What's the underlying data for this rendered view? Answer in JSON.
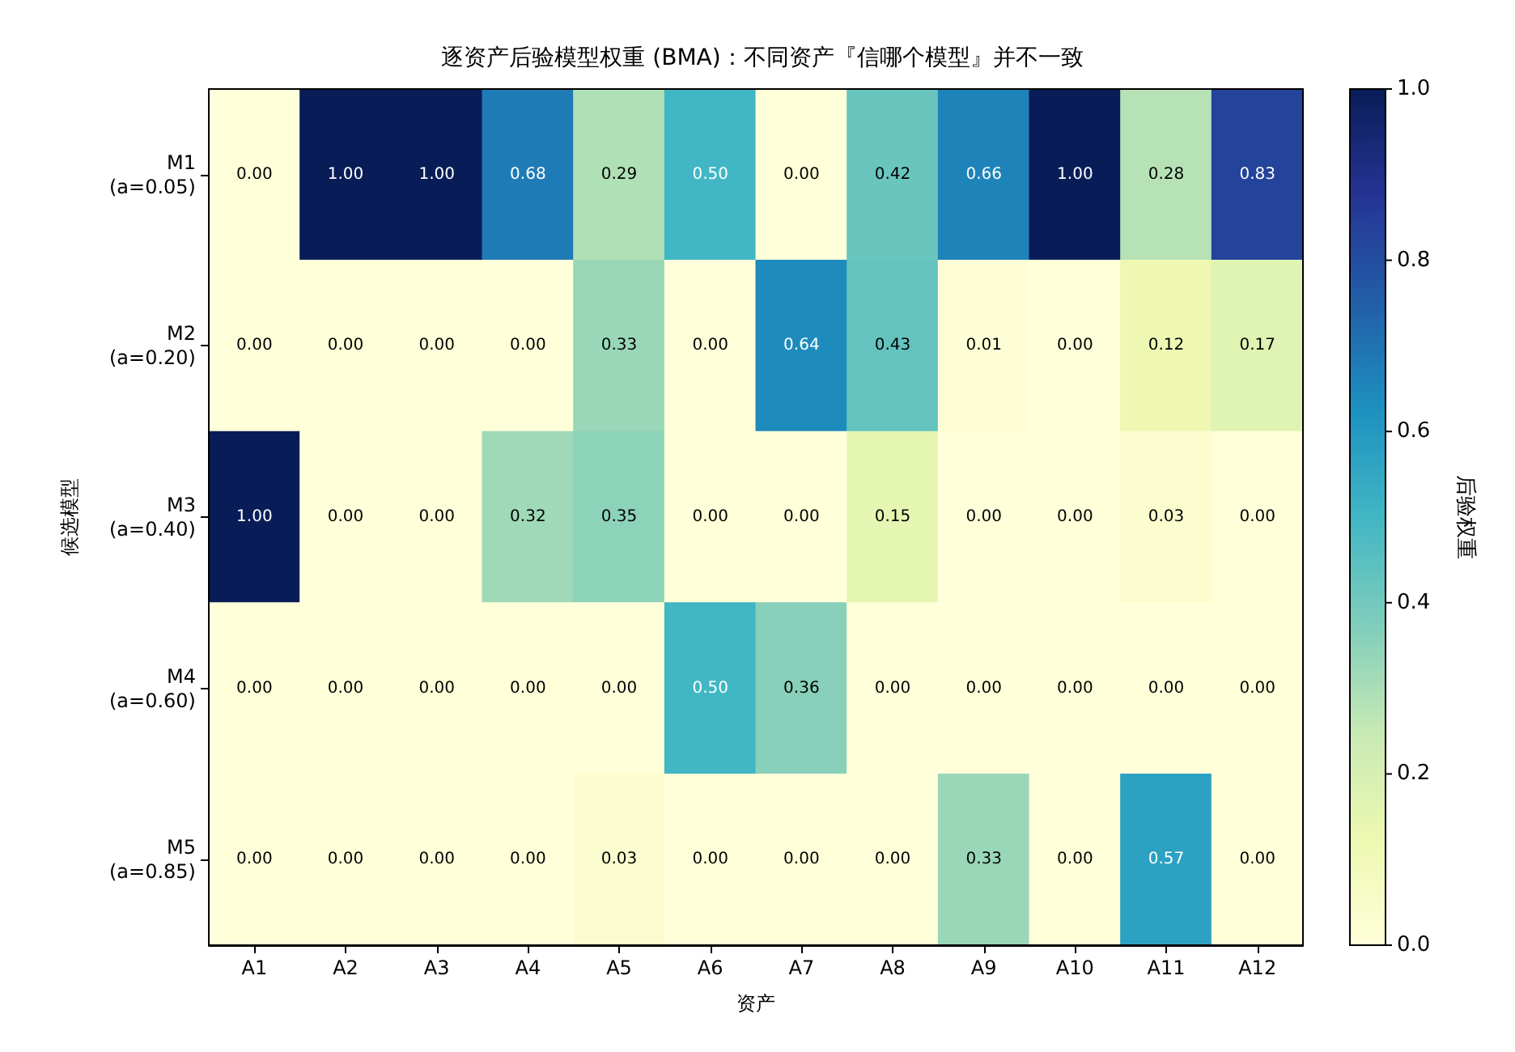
{
  "chart_data": {
    "type": "heatmap",
    "title": "逐资产后验模型权重 (BMA)：不同资产『信哪个模型』并不一致",
    "xlabel": "资产",
    "ylabel": "候选模型",
    "clabel": "后验权重",
    "categories": [
      "A1",
      "A2",
      "A3",
      "A4",
      "A5",
      "A6",
      "A7",
      "A8",
      "A9",
      "A10",
      "A11",
      "A12"
    ],
    "y_categories": [
      "M1\n(a=0.05)",
      "M2\n(a=0.20)",
      "M3\n(a=0.40)",
      "M4\n(a=0.60)",
      "M5\n(a=0.85)"
    ],
    "cells": [
      [
        0,
        1,
        1,
        0.68,
        0.29,
        0.5,
        0,
        0.42,
        0.66,
        1,
        0.28,
        0.83
      ],
      [
        0,
        0,
        0,
        0,
        0.33,
        0,
        0.64,
        0.43,
        0.01,
        0,
        0.12,
        0.17
      ],
      [
        1,
        0,
        0,
        0.32,
        0.35,
        0,
        0,
        0.15,
        0,
        0,
        0.03,
        0
      ],
      [
        0,
        0,
        0,
        0,
        0,
        0.5,
        0.36,
        0,
        0,
        0,
        0,
        0
      ],
      [
        0,
        0,
        0,
        0,
        0.03,
        0,
        0,
        0,
        0.33,
        0,
        0.57,
        0
      ]
    ],
    "cell_labels": [
      [
        "0.00",
        "1.00",
        "1.00",
        "0.68",
        "0.29",
        "0.50",
        "0.00",
        "0.42",
        "0.66",
        "1.00",
        "0.28",
        "0.83"
      ],
      [
        "0.00",
        "0.00",
        "0.00",
        "0.00",
        "0.33",
        "0.00",
        "0.64",
        "0.43",
        "0.01",
        "0.00",
        "0.12",
        "0.17"
      ],
      [
        "1.00",
        "0.00",
        "0.00",
        "0.32",
        "0.35",
        "0.00",
        "0.00",
        "0.15",
        "0.00",
        "0.00",
        "0.03",
        "0.00"
      ],
      [
        "0.00",
        "0.00",
        "0.00",
        "0.00",
        "0.00",
        "0.50",
        "0.36",
        "0.00",
        "0.00",
        "0.00",
        "0.00",
        "0.00"
      ],
      [
        "0.00",
        "0.00",
        "0.00",
        "0.00",
        "0.03",
        "0.00",
        "0.00",
        "0.00",
        "0.33",
        "0.00",
        "0.57",
        "0.00"
      ]
    ],
    "clim": [
      0,
      1
    ],
    "cticks": [
      {
        "value": 0,
        "label": "0.0"
      },
      {
        "value": 0.2,
        "label": "0.2"
      },
      {
        "value": 0.4,
        "label": "0.4"
      },
      {
        "value": 0.6,
        "label": "0.6"
      },
      {
        "value": 0.8,
        "label": "0.8"
      },
      {
        "value": 1,
        "label": "1.0"
      }
    ]
  }
}
